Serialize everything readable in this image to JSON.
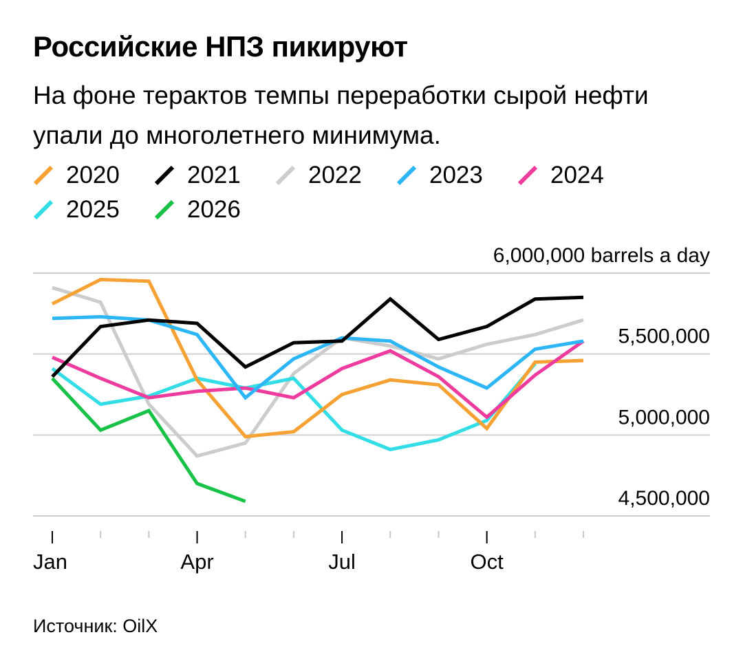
{
  "header": {
    "title": "Российские НПЗ пикируют",
    "subtitle": "На фоне терактов темпы переработки сырой нефти упали до многолетнего минимума."
  },
  "footer": {
    "source": "Источник: OilX"
  },
  "chart_data": {
    "type": "line",
    "title": "Российские НПЗ пикируют",
    "subtitle": "На фоне терактов темпы переработки сырой нефти упали до многолетнего минимума.",
    "xlabel": "",
    "ylabel": "",
    "x_unit_label": "",
    "y_unit_label": "barrels a day",
    "x": [
      1,
      2,
      3,
      4,
      5,
      6,
      7,
      8,
      9,
      10,
      11,
      12
    ],
    "month_ticks": [
      1,
      2,
      3,
      4,
      5,
      6,
      7,
      8,
      9,
      10,
      11,
      12
    ],
    "x_tick_labels": [
      {
        "x": 1,
        "label": "Jan"
      },
      {
        "x": 4,
        "label": "Apr"
      },
      {
        "x": 7,
        "label": "Jul"
      },
      {
        "x": 10,
        "label": "Oct"
      }
    ],
    "xlim": [
      1,
      12
    ],
    "ylim": [
      4500000,
      6000000
    ],
    "y_ticks": [
      {
        "value": 6000000,
        "label": "6,000,000 barrels a day"
      },
      {
        "value": 5500000,
        "label": "5,500,000"
      },
      {
        "value": 5000000,
        "label": "5,000,000"
      },
      {
        "value": 4500000,
        "label": "4,500,000"
      }
    ],
    "grid": true,
    "legend_position": "top-left",
    "series": [
      {
        "name": "2022",
        "color": "#cccccc",
        "values": [
          5910000,
          5820000,
          5190000,
          4870000,
          4950000,
          5380000,
          5600000,
          5550000,
          5470000,
          5560000,
          5620000,
          5710000
        ]
      },
      {
        "name": "2025",
        "color": "#33dde6",
        "values": [
          5410000,
          5190000,
          5240000,
          5350000,
          5290000,
          5350000,
          5030000,
          4910000,
          4970000,
          5090000,
          5440000,
          null
        ]
      },
      {
        "name": "2020",
        "color": "#f6a133",
        "values": [
          5810000,
          5960000,
          5950000,
          5340000,
          4990000,
          5020000,
          5250000,
          5340000,
          5310000,
          5040000,
          5450000,
          5460000
        ]
      },
      {
        "name": "2024",
        "color": "#ee3c9e",
        "values": [
          5480000,
          5350000,
          5230000,
          5270000,
          5290000,
          5230000,
          5410000,
          5520000,
          5360000,
          5110000,
          5370000,
          5580000
        ]
      },
      {
        "name": "2023",
        "color": "#2db6f5",
        "values": [
          5720000,
          5730000,
          5710000,
          5620000,
          5230000,
          5470000,
          5600000,
          5580000,
          5420000,
          5290000,
          5530000,
          5580000
        ]
      },
      {
        "name": "2021",
        "color": "#000000",
        "values": [
          5360000,
          5670000,
          5710000,
          5690000,
          5420000,
          5570000,
          5580000,
          5840000,
          5590000,
          5670000,
          5840000,
          5850000
        ]
      },
      {
        "name": "2026",
        "color": "#18c248",
        "values": [
          5350000,
          5030000,
          5150000,
          4700000,
          4590000,
          null,
          null,
          null,
          null,
          null,
          null,
          null
        ]
      }
    ]
  },
  "legend": {
    "rows": [
      [
        {
          "label": "2020",
          "color": "#f6a133"
        },
        {
          "label": "2021",
          "color": "#000000"
        },
        {
          "label": "2022",
          "color": "#cccccc"
        },
        {
          "label": "2023",
          "color": "#2db6f5"
        },
        {
          "label": "2024",
          "color": "#ee3c9e"
        }
      ],
      [
        {
          "label": "2025",
          "color": "#33dde6"
        },
        {
          "label": "2026",
          "color": "#18c248"
        }
      ]
    ]
  }
}
